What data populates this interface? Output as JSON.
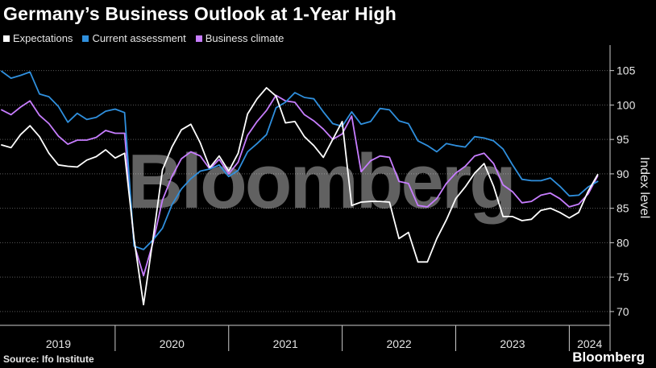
{
  "title": "Germany’s Business Outlook at 1-Year High",
  "source": "Source: Ifo Institute",
  "brand": "Bloomberg",
  "watermark": "Bloomberg",
  "chart_data": {
    "type": "line",
    "title": "Germany’s Business Outlook at 1-Year High",
    "ylabel": "Index level",
    "ylim": [
      68,
      108
    ],
    "yticks": [
      70,
      75,
      80,
      85,
      90,
      95,
      100,
      105
    ],
    "grid": true,
    "legend_placement": "top-left",
    "x_start": "2019-01",
    "x_labels": [
      "2019",
      "2020",
      "2021",
      "2022",
      "2023",
      "2024"
    ],
    "series": [
      {
        "name": "Expectations",
        "color": "#ffffff",
        "values": [
          94.2,
          93.8,
          95.7,
          97.0,
          95.4,
          93.0,
          91.3,
          91.1,
          91.0,
          92.0,
          92.5,
          93.5,
          92.3,
          93.0,
          80.5,
          71.0,
          80.5,
          90.6,
          93.9,
          96.4,
          97.2,
          94.5,
          90.9,
          92.6,
          90.4,
          93.0,
          98.7,
          100.9,
          102.5,
          101.3,
          97.4,
          97.6,
          95.4,
          94.1,
          92.4,
          95.0,
          97.6,
          85.4,
          85.9,
          86.0,
          86.0,
          85.9,
          80.6,
          81.5,
          77.2,
          77.2,
          80.6,
          83.3,
          86.4,
          88.1,
          90.1,
          91.5,
          88.2,
          83.8,
          83.8,
          83.2,
          83.4,
          84.7,
          85.0,
          84.4,
          83.6,
          84.4,
          87.5,
          89.9
        ]
      },
      {
        "name": "Current assessment",
        "color": "#2f8fdd",
        "values": [
          104.9,
          103.9,
          104.3,
          104.8,
          101.6,
          101.2,
          99.8,
          97.5,
          98.8,
          97.9,
          98.2,
          99.1,
          99.4,
          98.9,
          79.5,
          79.0,
          80.4,
          82.1,
          85.5,
          87.8,
          89.3,
          90.4,
          90.7,
          91.3,
          89.6,
          90.5,
          93.2,
          94.4,
          95.7,
          99.6,
          100.4,
          101.8,
          101.1,
          100.9,
          99.0,
          97.3,
          96.9,
          99.0,
          97.2,
          97.6,
          99.5,
          99.3,
          97.7,
          97.3,
          94.8,
          94.1,
          93.2,
          94.4,
          94.1,
          93.9,
          95.4,
          95.2,
          94.8,
          93.6,
          91.3,
          89.2,
          89.0,
          89.0,
          89.4,
          88.2,
          86.8,
          86.9,
          88.1,
          88.9
        ]
      },
      {
        "name": "Business climate",
        "color": "#c77dff",
        "values": [
          99.3,
          98.6,
          99.7,
          100.6,
          98.5,
          97.3,
          95.5,
          94.3,
          94.9,
          94.9,
          95.3,
          96.3,
          95.9,
          95.9,
          79.8,
          75.2,
          80.0,
          86.2,
          89.6,
          92.2,
          93.2,
          92.6,
          90.7,
          92.1,
          90.0,
          91.7,
          95.6,
          97.6,
          99.2,
          101.4,
          100.6,
          100.4,
          98.6,
          97.7,
          96.5,
          95.0,
          95.8,
          98.4,
          90.3,
          91.9,
          92.6,
          92.4,
          88.9,
          88.6,
          85.4,
          85.2,
          86.4,
          88.6,
          90.1,
          91.1,
          92.6,
          93.0,
          91.5,
          88.4,
          87.4,
          85.8,
          86.0,
          86.9,
          87.2,
          86.4,
          85.2,
          85.6,
          87.1,
          89.7
        ]
      }
    ]
  }
}
